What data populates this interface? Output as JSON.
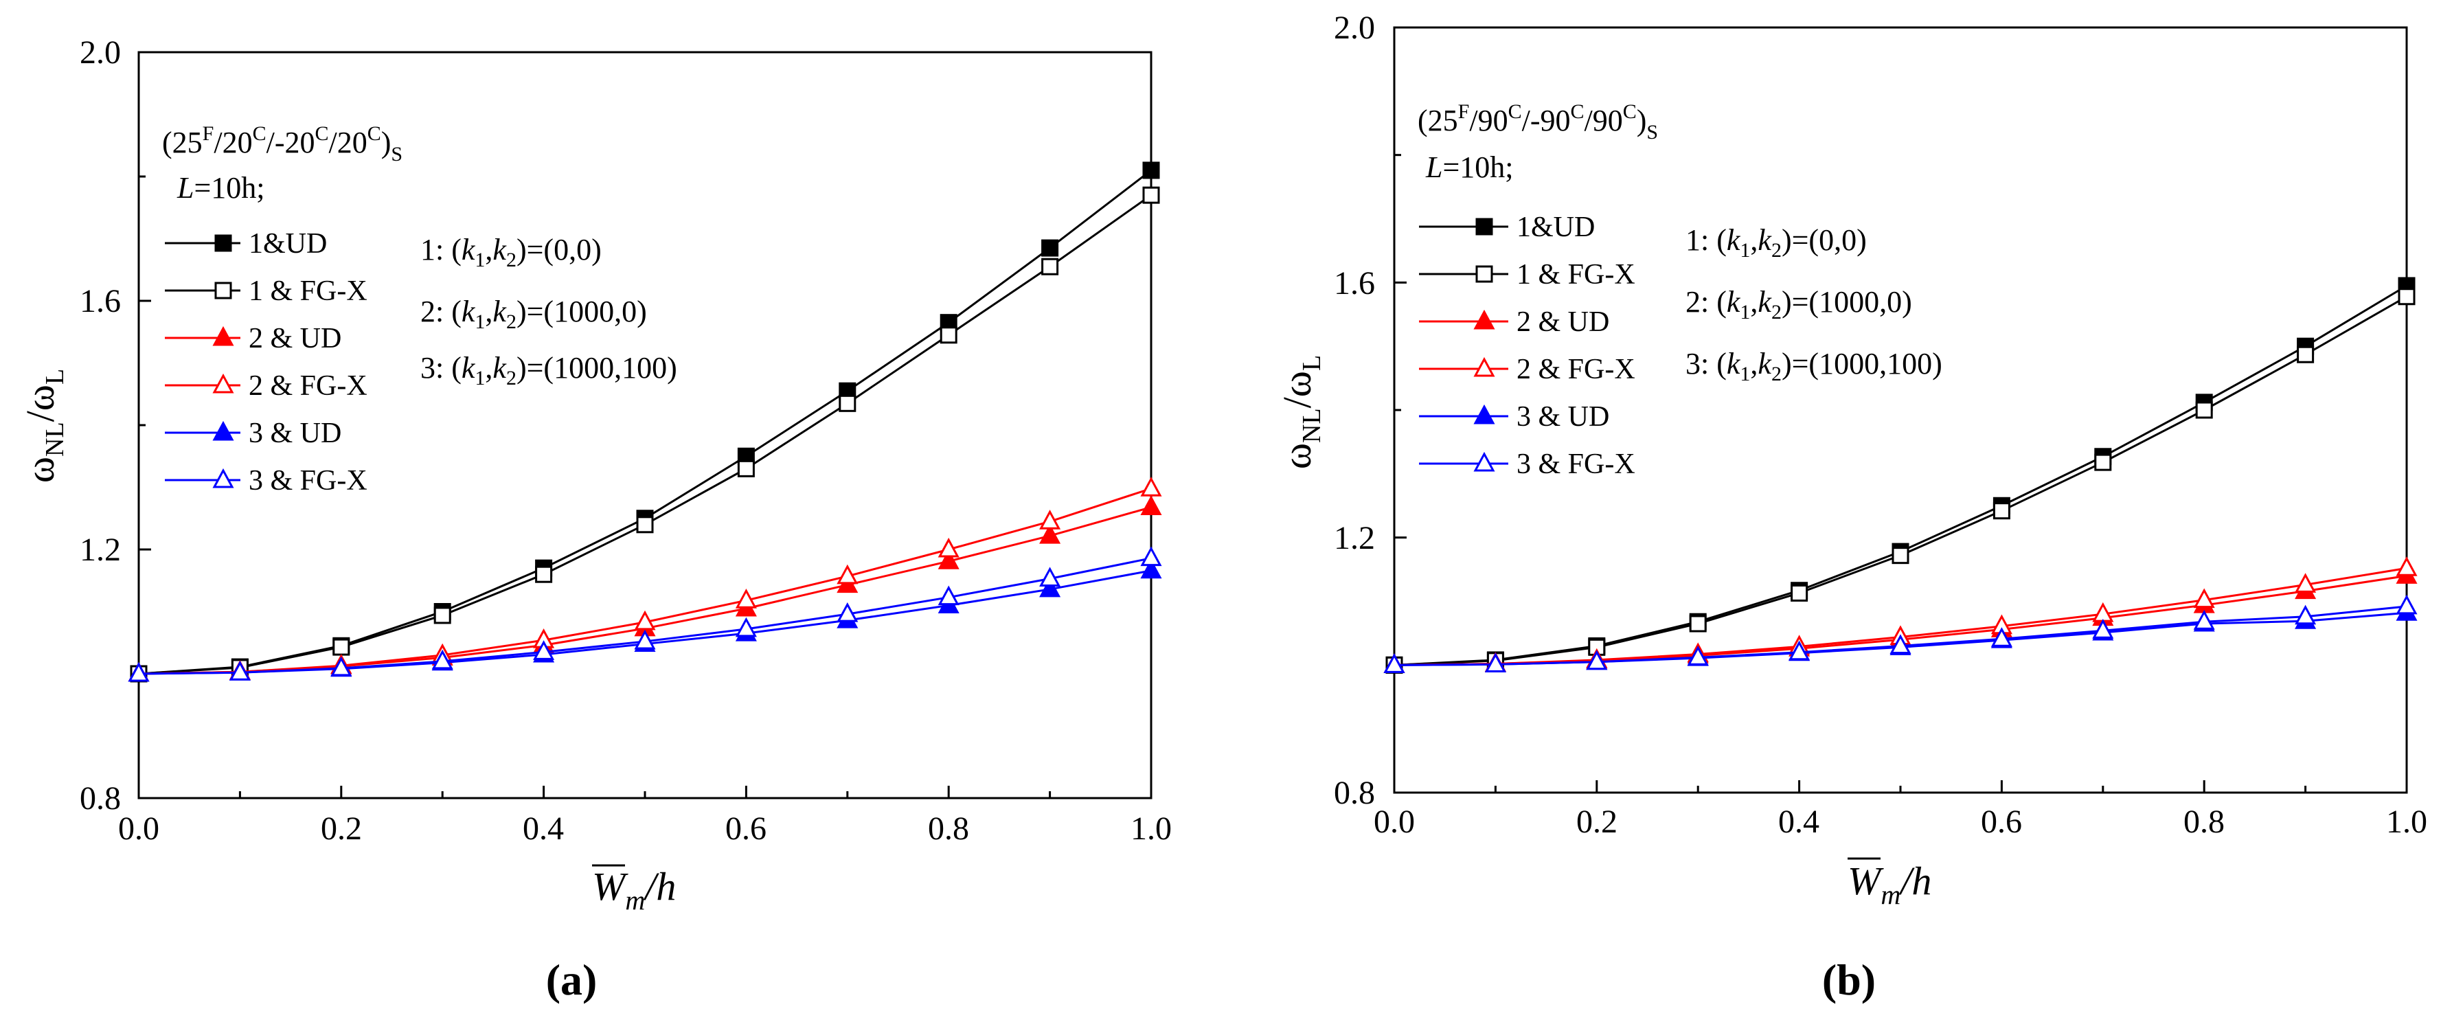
{
  "figure": {
    "panels": [
      {
        "panel_label": "(a)",
        "layup": [
          "(25",
          "F",
          "/20",
          "C",
          "/-20",
          "C",
          "/20",
          "C",
          ")",
          "S"
        ],
        "length_note": [
          "L",
          "=10h;"
        ],
        "y_label": [
          "ω",
          "NL",
          "/ω",
          "L"
        ],
        "x_label": [
          "W",
          "m",
          "/h"
        ],
        "legend": [
          "1&UD",
          "1 & FG-X",
          "2 & UD",
          "2 & FG-X",
          "3 & UD",
          "3 & FG-X"
        ],
        "x_ticks": [
          "0.0",
          "0.2",
          "0.4",
          "0.6",
          "0.8",
          "1.0"
        ],
        "y_ticks": [
          "0.8",
          "1.2",
          "1.6",
          "2.0"
        ]
      },
      {
        "panel_label": "(b)",
        "layup": [
          "(25",
          "F",
          "/90",
          "C",
          "/-90",
          "C",
          "/90",
          "C",
          ")",
          "S"
        ],
        "length_note": [
          "L",
          "=10h;"
        ],
        "y_label": [
          "ω",
          "NL",
          "/ω",
          "L"
        ],
        "x_label": [
          "W",
          "m",
          "/h"
        ],
        "legend": [
          "1&UD",
          "1 & FG-X",
          "2 & UD",
          "2 & FG-X",
          "3 & UD",
          "3 & FG-X"
        ],
        "x_ticks": [
          "0.0",
          "0.2",
          "0.4",
          "0.6",
          "0.8",
          "1.0"
        ],
        "y_ticks": [
          "0.8",
          "1.2",
          "1.6",
          "2.0"
        ]
      }
    ],
    "params": [
      [
        "1: (",
        "k",
        "1",
        ",",
        "k",
        "2",
        ")=(0,0)"
      ],
      [
        "2: (",
        "k",
        "1",
        ",",
        "k",
        "2",
        ")=(1000,0)"
      ],
      [
        "3: (",
        "k",
        "1",
        ",",
        "k",
        "2",
        ")=(1000,100)"
      ]
    ]
  },
  "colors": {
    "series1": "#000000",
    "series2": "#ff0000",
    "series3": "#0000ff",
    "axis": "#000000",
    "background": "#ffffff"
  },
  "chart_data": [
    {
      "type": "line",
      "xlim": [
        0,
        1.0
      ],
      "ylim": [
        0.8,
        2.0
      ],
      "x_ticks": [
        0.0,
        0.2,
        0.4,
        0.6,
        0.8,
        1.0
      ],
      "y_ticks": [
        0.8,
        1.2,
        1.6,
        2.0
      ],
      "grid": false,
      "legend_position": "top-left",
      "x": [
        0.0,
        0.1,
        0.2,
        0.3,
        0.4,
        0.5,
        0.6,
        0.7,
        0.8,
        0.9,
        1.0
      ],
      "series": [
        {
          "name": "1&UD",
          "color": "#000000",
          "marker": "square",
          "filled": true,
          "values": [
            1.0,
            1.011,
            1.045,
            1.1,
            1.17,
            1.25,
            1.35,
            1.455,
            1.565,
            1.685,
            1.81
          ]
        },
        {
          "name": "1 & FG-X",
          "color": "#000000",
          "marker": "square",
          "filled": false,
          "values": [
            1.0,
            1.01,
            1.043,
            1.094,
            1.16,
            1.24,
            1.33,
            1.435,
            1.545,
            1.655,
            1.77
          ]
        },
        {
          "name": "2 & UD",
          "color": "#ff0000",
          "marker": "triangle",
          "filled": true,
          "values": [
            1.0,
            1.003,
            1.012,
            1.026,
            1.046,
            1.073,
            1.105,
            1.143,
            1.181,
            1.222,
            1.268
          ]
        },
        {
          "name": "2 & FG-X",
          "color": "#ff0000",
          "marker": "triangle",
          "filled": false,
          "values": [
            1.0,
            1.003,
            1.013,
            1.03,
            1.054,
            1.083,
            1.118,
            1.157,
            1.2,
            1.245,
            1.298
          ]
        },
        {
          "name": "3 & UD",
          "color": "#0000ff",
          "marker": "triangle",
          "filled": true,
          "values": [
            1.0,
            1.002,
            1.008,
            1.018,
            1.031,
            1.048,
            1.065,
            1.086,
            1.11,
            1.136,
            1.166
          ]
        },
        {
          "name": "3 & FG-X",
          "color": "#0000ff",
          "marker": "triangle",
          "filled": false,
          "values": [
            1.0,
            1.002,
            1.009,
            1.02,
            1.035,
            1.052,
            1.072,
            1.096,
            1.123,
            1.153,
            1.186
          ]
        }
      ]
    },
    {
      "type": "line",
      "xlim": [
        0,
        1.0
      ],
      "ylim": [
        0.8,
        2.0
      ],
      "x_ticks": [
        0.0,
        0.2,
        0.4,
        0.6,
        0.8,
        1.0
      ],
      "y_ticks": [
        0.8,
        1.2,
        1.6,
        2.0
      ],
      "grid": false,
      "legend_position": "top-left",
      "x": [
        0.0,
        0.1,
        0.2,
        0.3,
        0.4,
        0.5,
        0.6,
        0.7,
        0.8,
        0.9,
        1.0
      ],
      "series": [
        {
          "name": "1&UD",
          "color": "#000000",
          "marker": "square",
          "filled": true,
          "values": [
            1.0,
            1.008,
            1.03,
            1.068,
            1.117,
            1.178,
            1.25,
            1.327,
            1.412,
            1.5,
            1.595
          ]
        },
        {
          "name": "1 & FG-X",
          "color": "#000000",
          "marker": "square",
          "filled": false,
          "values": [
            1.0,
            1.007,
            1.028,
            1.065,
            1.113,
            1.172,
            1.242,
            1.318,
            1.4,
            1.487,
            1.578
          ]
        },
        {
          "name": "2 & UD",
          "color": "#ff0000",
          "marker": "triangle",
          "filled": true,
          "values": [
            1.0,
            1.002,
            1.007,
            1.015,
            1.026,
            1.04,
            1.056,
            1.074,
            1.094,
            1.116,
            1.14
          ]
        },
        {
          "name": "2 & FG-X",
          "color": "#ff0000",
          "marker": "triangle",
          "filled": false,
          "values": [
            1.0,
            1.002,
            1.008,
            1.017,
            1.029,
            1.044,
            1.061,
            1.08,
            1.102,
            1.126,
            1.152
          ]
        },
        {
          "name": "3 & UD",
          "color": "#0000ff",
          "marker": "triangle",
          "filled": true,
          "values": [
            1.0,
            1.001,
            1.005,
            1.011,
            1.019,
            1.028,
            1.039,
            1.051,
            1.065,
            1.069,
            1.082
          ]
        },
        {
          "name": "3 & FG-X",
          "color": "#0000ff",
          "marker": "triangle",
          "filled": false,
          "values": [
            1.0,
            1.001,
            1.005,
            1.012,
            1.02,
            1.03,
            1.041,
            1.054,
            1.068,
            1.076,
            1.092
          ]
        }
      ]
    }
  ]
}
